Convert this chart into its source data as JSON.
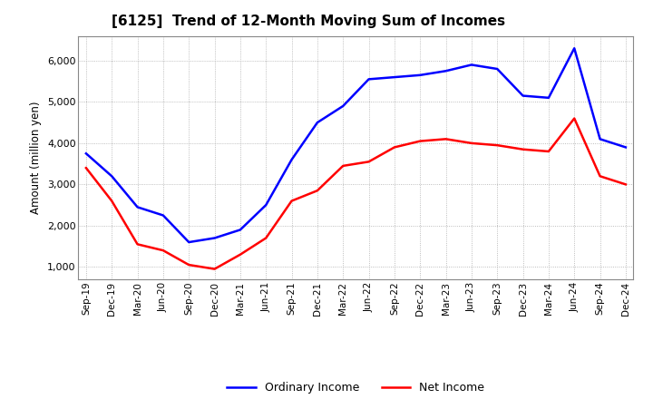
{
  "title": "[6125]  Trend of 12-Month Moving Sum of Incomes",
  "ylabel": "Amount (million yen)",
  "ylim": [
    700,
    6600
  ],
  "yticks": [
    1000,
    2000,
    3000,
    4000,
    5000,
    6000
  ],
  "background_color": "#ffffff",
  "grid_color": "#aaaaaa",
  "ordinary_income_color": "#0000ff",
  "net_income_color": "#ff0000",
  "dates": [
    "Sep-19",
    "Dec-19",
    "Mar-20",
    "Jun-20",
    "Sep-20",
    "Dec-20",
    "Mar-21",
    "Jun-21",
    "Sep-21",
    "Dec-21",
    "Mar-22",
    "Jun-22",
    "Sep-22",
    "Dec-22",
    "Mar-23",
    "Jun-23",
    "Sep-23",
    "Dec-23",
    "Mar-24",
    "Jun-24",
    "Sep-24",
    "Dec-24"
  ],
  "ordinary_income": [
    3750,
    3200,
    2450,
    2250,
    1600,
    1700,
    1900,
    2500,
    3600,
    4500,
    4900,
    5550,
    5600,
    5650,
    5750,
    5900,
    5800,
    5150,
    5100,
    6300,
    4100,
    3900
  ],
  "net_income": [
    3400,
    2600,
    1550,
    1400,
    1050,
    950,
    1300,
    1700,
    2600,
    2850,
    3450,
    3550,
    3900,
    4050,
    4100,
    4000,
    3950,
    3850,
    3800,
    4600,
    3200,
    3000
  ]
}
